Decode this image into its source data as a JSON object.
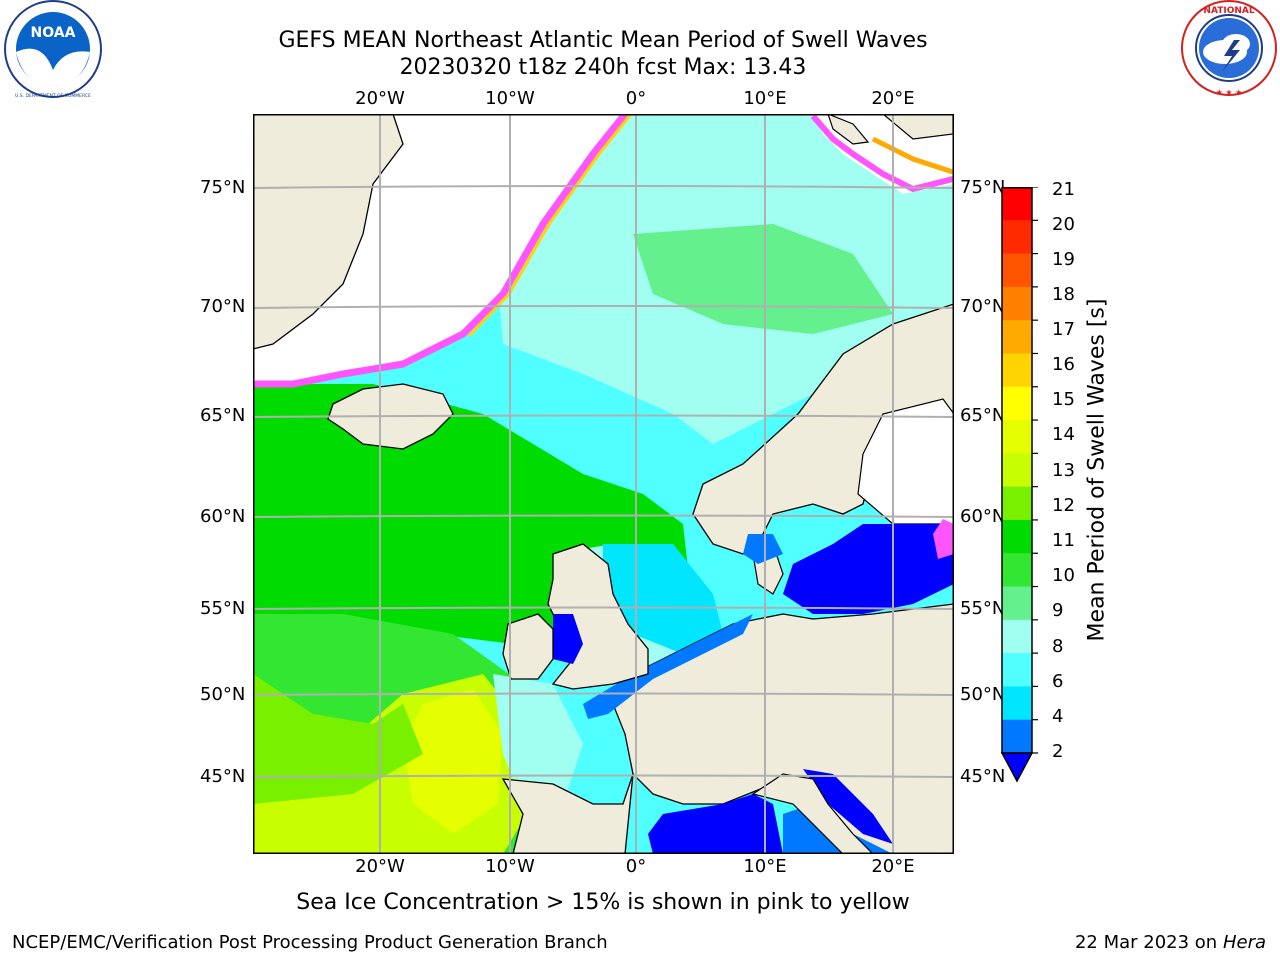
{
  "title_line1": "GEFS MEAN Northeast Atlantic Mean Period of Swell Waves",
  "title_line2": "20230320 t18z 240h fcst   Max: 13.43",
  "logos": {
    "left": {
      "name": "noaa-logo",
      "text": "NOAA",
      "ring_text": "NATIONAL OCEANIC AND ATMOSPHERIC ADMINISTRATION · U.S. DEPARTMENT OF COMMERCE"
    },
    "right": {
      "name": "nws-logo",
      "ring_text": "NATIONAL WEATHER SERVICE"
    }
  },
  "map": {
    "lon_ticks": [
      "20°W",
      "10°W",
      "0°",
      "10°E",
      "20°E"
    ],
    "lat_ticks": [
      "75°N",
      "70°N",
      "65°N",
      "60°N",
      "55°N",
      "50°N",
      "45°N"
    ],
    "projection": "polar stereographic",
    "colors": {
      "land": "#efecdc",
      "ice_free_white": "#ffffff",
      "grid": "#b0b0b0",
      "coast": "#000000"
    }
  },
  "colorbar": {
    "title": "Mean Period of Swell Waves [s]",
    "labels": [
      "21",
      "20",
      "19",
      "18",
      "17",
      "16",
      "15",
      "14",
      "13",
      "12",
      "11",
      "10",
      "9",
      "8",
      "6",
      "4",
      "2"
    ],
    "levels": [
      {
        "range": "20-21",
        "color": "#ff0000"
      },
      {
        "range": "19-20",
        "color": "#ff2a00"
      },
      {
        "range": "18-19",
        "color": "#ff5500"
      },
      {
        "range": "17-18",
        "color": "#ff8000"
      },
      {
        "range": "16-17",
        "color": "#ffaa00"
      },
      {
        "range": "15-16",
        "color": "#ffd400"
      },
      {
        "range": "14-15",
        "color": "#ffff00"
      },
      {
        "range": "13-14",
        "color": "#e6ff00"
      },
      {
        "range": "12-13",
        "color": "#c8ff00"
      },
      {
        "range": "11-12",
        "color": "#78f000"
      },
      {
        "range": "10-11",
        "color": "#00dc00"
      },
      {
        "range": "9-10",
        "color": "#32e632"
      },
      {
        "range": "8-9",
        "color": "#64f08c"
      },
      {
        "range": "6-8",
        "color": "#a0fff0"
      },
      {
        "range": "4-6",
        "color": "#50ffff"
      },
      {
        "range": "2-4",
        "color": "#00e6ff"
      },
      {
        "range": "<2",
        "color": "#0078ff"
      },
      {
        "range": "extend",
        "color": "#0000ff"
      }
    ]
  },
  "note": "Sea Ice Concentration > 15% is shown in pink to yellow",
  "footer_left": "NCEP/EMC/Verification Post Processing Product Generation Branch",
  "footer_date": "22 Mar 2023 on",
  "footer_host": "Hera"
}
